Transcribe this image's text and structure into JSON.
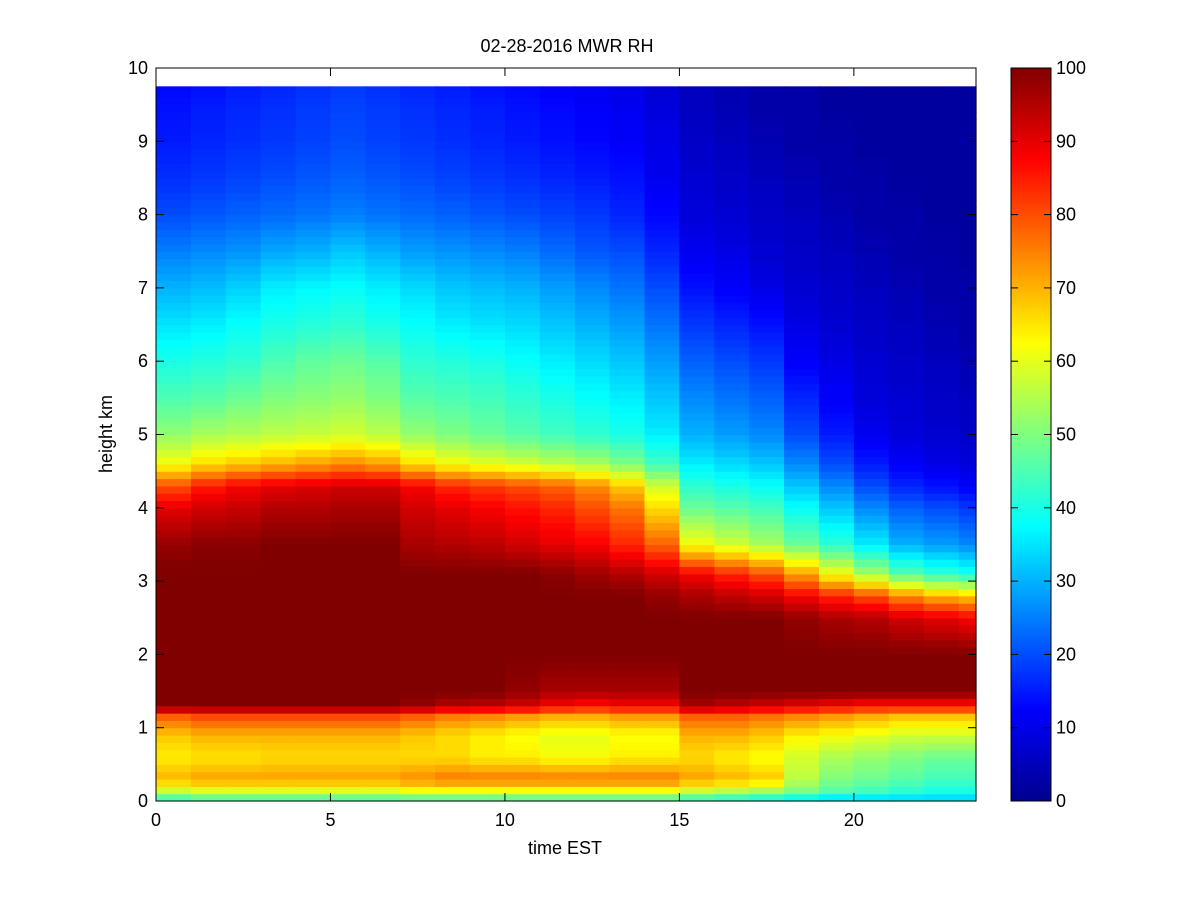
{
  "chart_data": {
    "type": "heatmap",
    "title": "02-28-2016 MWR RH",
    "xlabel": "time EST",
    "ylabel": "height km",
    "xlim": [
      0,
      23.5
    ],
    "ylim": [
      0,
      10
    ],
    "xticks": [
      0,
      5,
      10,
      15,
      20
    ],
    "yticks": [
      0,
      1,
      2,
      3,
      4,
      5,
      6,
      7,
      8,
      9,
      10
    ],
    "colorbar": {
      "colormap": "jet",
      "range": [
        0,
        100
      ],
      "ticks": [
        0,
        10,
        20,
        30,
        40,
        50,
        60,
        70,
        80,
        90,
        100
      ]
    },
    "time_columns": [
      0,
      1,
      2,
      3,
      4,
      5,
      6,
      7,
      8,
      9,
      10,
      11,
      12,
      13,
      14,
      15,
      16,
      17,
      18,
      19,
      20,
      21,
      22,
      23
    ],
    "height_km": [
      0.0,
      0.1,
      0.2,
      0.3,
      0.4,
      0.5,
      0.6,
      0.7,
      0.8,
      0.9,
      1.0,
      1.1,
      1.2,
      1.3,
      1.4,
      1.5,
      1.6,
      1.7,
      1.8,
      1.9,
      2.0,
      2.1,
      2.2,
      2.3,
      2.4,
      2.5,
      2.6,
      2.7,
      2.8,
      2.9,
      3.0,
      3.1,
      3.2,
      3.3,
      3.4,
      3.5,
      3.6,
      3.7,
      3.8,
      3.9,
      4.0,
      4.1,
      4.2,
      4.3,
      4.4,
      4.5,
      4.6,
      4.7,
      4.8,
      4.9,
      5.0,
      5.1,
      5.2,
      5.3,
      5.4,
      5.5,
      5.6,
      5.7,
      5.8,
      5.9,
      6.0,
      6.1,
      6.2,
      6.3,
      6.4,
      6.5,
      6.6,
      6.7,
      6.8,
      6.9,
      7.0,
      7.1,
      7.2,
      7.3,
      7.4,
      7.5,
      7.6,
      7.7,
      7.8,
      7.9,
      8.0,
      8.1,
      8.2,
      8.3,
      8.4,
      8.5,
      8.6,
      8.7,
      8.8,
      8.9,
      9.0,
      9.1,
      9.2,
      9.3,
      9.4,
      9.5,
      9.6,
      9.7,
      9.75
    ],
    "rh_profile_points": {
      "h": [
        0,
        0.15,
        0.3,
        0.6,
        0.9,
        1.15,
        1.3,
        1.5,
        2.0,
        2.5,
        2.8,
        3.1,
        3.5,
        4.0,
        4.3,
        4.6,
        5.0,
        5.5,
        6.0,
        6.5,
        7.0,
        7.5,
        8.0,
        8.5,
        9.0,
        9.5,
        9.75
      ],
      "note_units": "percent",
      "columns": [
        [
          40,
          58,
          70,
          64,
          68,
          78,
          100,
          100,
          100,
          100,
          100,
          100,
          98,
          90,
          80,
          62,
          52,
          45,
          40,
          35,
          30,
          25,
          20,
          17,
          15,
          14,
          13
        ],
        [
          42,
          60,
          72,
          65,
          70,
          80,
          100,
          100,
          100,
          100,
          100,
          100,
          99,
          92,
          85,
          66,
          54,
          46,
          41,
          36,
          31,
          26,
          21,
          18,
          16,
          15,
          14
        ],
        [
          42,
          60,
          72,
          65,
          70,
          80,
          100,
          100,
          100,
          100,
          100,
          100,
          99,
          93,
          88,
          68,
          55,
          48,
          42,
          38,
          33,
          27,
          22,
          19,
          17,
          16,
          15
        ],
        [
          42,
          60,
          72,
          66,
          70,
          80,
          100,
          100,
          100,
          100,
          100,
          100,
          100,
          95,
          90,
          70,
          56,
          50,
          45,
          40,
          36,
          29,
          23,
          20,
          18,
          17,
          16
        ],
        [
          42,
          60,
          72,
          66,
          70,
          80,
          100,
          100,
          100,
          100,
          100,
          100,
          100,
          95,
          91,
          72,
          57,
          51,
          47,
          41,
          37,
          30,
          24,
          21,
          19,
          18,
          17
        ],
        [
          42,
          60,
          72,
          66,
          70,
          80,
          100,
          100,
          100,
          100,
          100,
          100,
          100,
          96,
          92,
          74,
          58,
          52,
          48,
          42,
          38,
          32,
          25,
          22,
          20,
          19,
          18
        ],
        [
          42,
          60,
          72,
          66,
          70,
          80,
          100,
          100,
          100,
          100,
          100,
          100,
          100,
          96,
          92,
          72,
          56,
          50,
          46,
          40,
          36,
          30,
          24,
          21,
          19,
          18,
          17
        ],
        [
          42,
          62,
          74,
          66,
          68,
          78,
          98,
          100,
          100,
          100,
          100,
          100,
          96,
          92,
          88,
          66,
          52,
          46,
          42,
          38,
          34,
          28,
          23,
          20,
          18,
          17,
          16
        ],
        [
          42,
          62,
          76,
          66,
          66,
          75,
          95,
          100,
          100,
          100,
          100,
          100,
          95,
          90,
          84,
          62,
          50,
          45,
          41,
          36,
          32,
          27,
          22,
          19,
          17,
          16,
          15
        ],
        [
          42,
          62,
          76,
          64,
          64,
          74,
          94,
          100,
          100,
          100,
          100,
          100,
          94,
          88,
          82,
          60,
          48,
          44,
          40,
          35,
          31,
          26,
          21,
          18,
          16,
          15,
          14
        ],
        [
          42,
          62,
          76,
          64,
          62,
          72,
          92,
          98,
          100,
          100,
          100,
          100,
          92,
          86,
          80,
          58,
          46,
          42,
          38,
          34,
          30,
          25,
          20,
          17,
          15,
          14,
          13
        ],
        [
          42,
          62,
          76,
          62,
          60,
          70,
          88,
          96,
          100,
          100,
          100,
          99,
          90,
          84,
          78,
          56,
          44,
          40,
          36,
          32,
          28,
          23,
          19,
          16,
          14,
          13,
          12
        ],
        [
          42,
          62,
          76,
          62,
          60,
          70,
          86,
          96,
          100,
          100,
          100,
          97,
          88,
          80,
          74,
          54,
          42,
          38,
          34,
          30,
          26,
          21,
          18,
          15,
          13,
          12,
          11
        ],
        [
          42,
          62,
          76,
          64,
          62,
          72,
          88,
          96,
          100,
          100,
          100,
          95,
          84,
          76,
          68,
          50,
          40,
          36,
          32,
          28,
          24,
          20,
          16,
          14,
          12,
          11,
          10
        ],
        [
          42,
          62,
          76,
          64,
          62,
          72,
          88,
          96,
          100,
          100,
          98,
          92,
          78,
          66,
          58,
          44,
          36,
          32,
          28,
          24,
          20,
          16,
          13,
          11,
          10,
          9,
          8
        ],
        [
          40,
          58,
          72,
          66,
          70,
          78,
          96,
          100,
          100,
          100,
          96,
          88,
          62,
          48,
          42,
          36,
          30,
          26,
          22,
          18,
          14,
          11,
          9,
          8,
          7,
          6,
          6
        ],
        [
          38,
          56,
          70,
          64,
          70,
          78,
          94,
          100,
          100,
          100,
          94,
          84,
          58,
          46,
          40,
          34,
          28,
          24,
          20,
          16,
          12,
          10,
          8,
          7,
          6,
          5,
          5
        ],
        [
          36,
          54,
          68,
          62,
          68,
          76,
          92,
          100,
          100,
          100,
          92,
          80,
          54,
          44,
          38,
          32,
          26,
          22,
          18,
          14,
          10,
          8,
          7,
          6,
          5,
          4,
          4
        ],
        [
          34,
          50,
          56,
          58,
          64,
          74,
          90,
          100,
          100,
          98,
          88,
          72,
          48,
          38,
          32,
          26,
          20,
          16,
          12,
          10,
          8,
          7,
          6,
          5,
          4,
          4,
          4
        ],
        [
          32,
          46,
          50,
          54,
          62,
          72,
          88,
          100,
          100,
          96,
          84,
          62,
          42,
          32,
          26,
          20,
          15,
          12,
          10,
          8,
          7,
          6,
          5,
          4,
          4,
          3,
          3
        ],
        [
          32,
          44,
          48,
          52,
          60,
          70,
          86,
          100,
          100,
          95,
          80,
          54,
          36,
          26,
          20,
          15,
          11,
          9,
          8,
          7,
          6,
          5,
          4,
          4,
          3,
          3,
          3
        ],
        [
          32,
          42,
          46,
          50,
          58,
          68,
          86,
          100,
          100,
          92,
          74,
          46,
          30,
          22,
          16,
          12,
          9,
          8,
          7,
          6,
          5,
          4,
          4,
          3,
          3,
          3,
          3
        ],
        [
          32,
          40,
          44,
          48,
          58,
          68,
          86,
          100,
          100,
          90,
          70,
          42,
          28,
          20,
          14,
          10,
          8,
          7,
          6,
          5,
          4,
          4,
          3,
          3,
          3,
          3,
          3
        ],
        [
          32,
          40,
          44,
          48,
          58,
          68,
          86,
          100,
          100,
          88,
          68,
          40,
          26,
          18,
          12,
          9,
          7,
          6,
          5,
          4,
          4,
          3,
          3,
          3,
          3,
          3,
          3
        ]
      ]
    }
  }
}
